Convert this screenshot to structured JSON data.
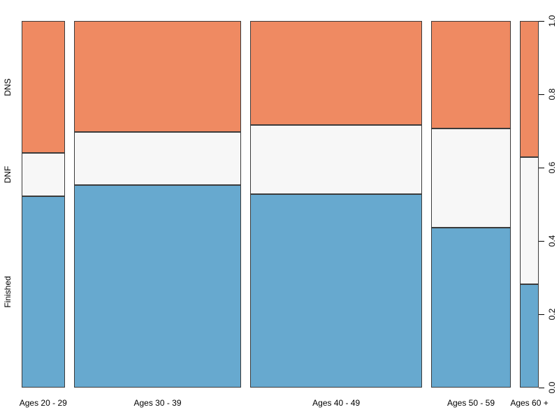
{
  "figure": {
    "background": "#ffffff",
    "segment_border_color": "#3b3b3b",
    "text_color": "#000000"
  },
  "chart_data": {
    "type": "mosaic",
    "title": "",
    "xlabel": "",
    "ylabel": "",
    "categories": [
      "Ages 20 - 29",
      "Ages 30 - 39",
      "Ages 40 - 49",
      "Ages 50 - 59",
      "Ages 60 +"
    ],
    "category_width_fractions": [
      0.089,
      0.347,
      0.355,
      0.165,
      0.039
    ],
    "row_labels": [
      "Finished",
      "DNF",
      "DNS"
    ],
    "stack_order_bottom_to_top": [
      "Finished",
      "DNF",
      "DNS"
    ],
    "series": [
      {
        "name": "Finished",
        "color": "#67A9CF",
        "values": [
          0.522,
          0.552,
          0.528,
          0.436,
          0.282
        ]
      },
      {
        "name": "DNF",
        "color": "#F7F7F7",
        "values": [
          0.118,
          0.145,
          0.189,
          0.27,
          0.347
        ]
      },
      {
        "name": "DNS",
        "color": "#EF8A62",
        "values": [
          0.36,
          0.303,
          0.284,
          0.293,
          0.371
        ]
      }
    ],
    "y_axis": {
      "side": "right",
      "min": 0.0,
      "max": 1.0,
      "tick_labels": [
        "0.0",
        "0.2",
        "0.4",
        "0.6",
        "0.8",
        "1.0"
      ],
      "grid": false
    },
    "legend": "none"
  }
}
